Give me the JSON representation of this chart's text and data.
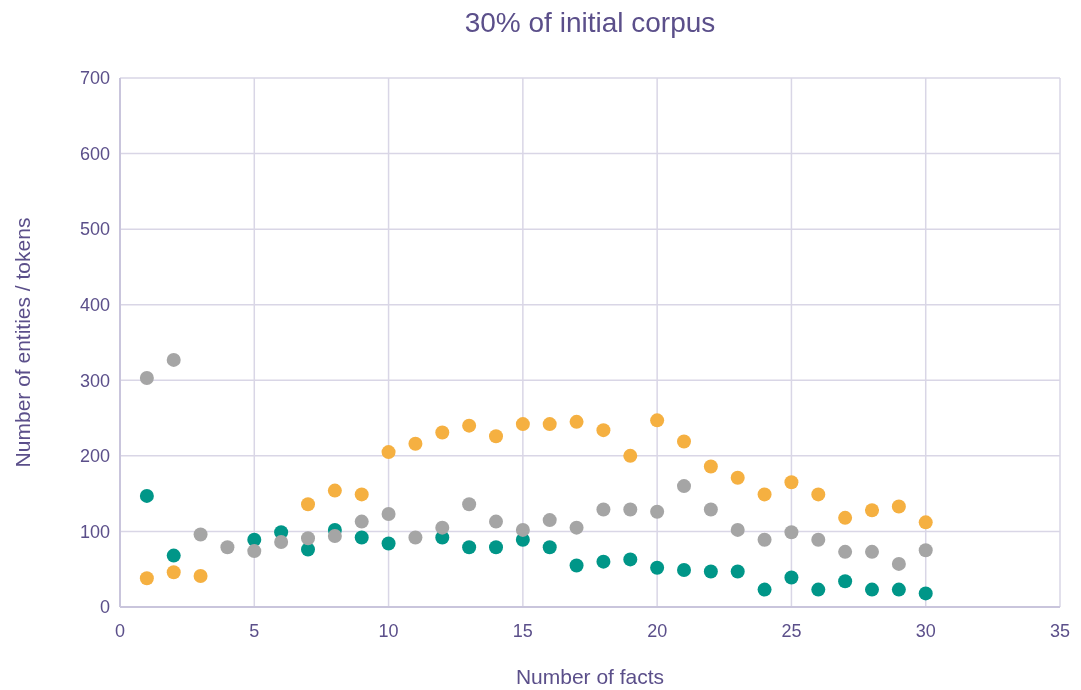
{
  "chart_data": {
    "type": "scatter",
    "title": "30% of initial corpus",
    "xlabel": "Number of facts",
    "ylabel": "Number of entities / tokens",
    "x": [
      1,
      2,
      3,
      4,
      5,
      6,
      7,
      8,
      9,
      10,
      11,
      12,
      13,
      14,
      15,
      16,
      17,
      18,
      19,
      20,
      21,
      22,
      23,
      24,
      25,
      26,
      27,
      28,
      29,
      30
    ],
    "series": [
      {
        "color": "#f5b041",
        "values": [
          38,
          46,
          41,
          null,
          null,
          null,
          136,
          154,
          149,
          205,
          216,
          231,
          240,
          226,
          242,
          242,
          245,
          234,
          200,
          247,
          219,
          186,
          171,
          149,
          165,
          149,
          118,
          128,
          133,
          112
        ]
      },
      {
        "color": "#009688",
        "values": [
          147,
          68,
          null,
          null,
          89,
          99,
          76,
          102,
          92,
          84,
          null,
          92,
          79,
          79,
          89,
          79,
          55,
          60,
          63,
          52,
          49,
          47,
          47,
          23,
          39,
          23,
          34,
          23,
          23,
          18
        ]
      },
      {
        "color": "#a5a5a5",
        "values": [
          303,
          327,
          96,
          79,
          74,
          86,
          91,
          94,
          113,
          123,
          92,
          105,
          136,
          113,
          102,
          115,
          105,
          129,
          129,
          126,
          160,
          129,
          102,
          89,
          99,
          89,
          73,
          73,
          57,
          75
        ]
      }
    ],
    "xlim": [
      0,
      35
    ],
    "xticks": [
      0,
      5,
      10,
      15,
      20,
      25,
      30,
      35
    ],
    "ylim": [
      0,
      700
    ],
    "yticks": [
      0,
      100,
      200,
      300,
      400,
      500,
      600,
      700
    ],
    "grid": true,
    "marker": "circle"
  }
}
